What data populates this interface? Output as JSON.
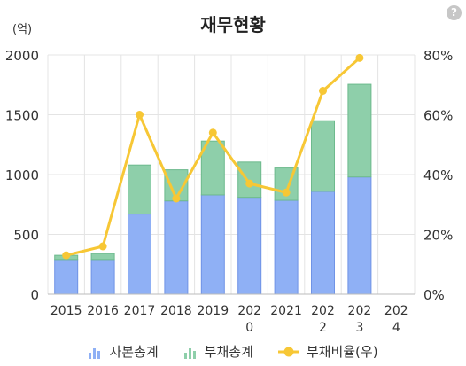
{
  "header": {
    "title": "재무현황",
    "unit_label": "(억)",
    "help_icon": "?"
  },
  "chart_data": {
    "type": "bar",
    "stacked": true,
    "categories": [
      "2015",
      "2016",
      "2017",
      "2018",
      "2019",
      "2020",
      "2021",
      "2022",
      "2023",
      "2024"
    ],
    "category_lines": [
      [
        "2015"
      ],
      [
        "2016"
      ],
      [
        "2017"
      ],
      [
        "2018"
      ],
      [
        "2019"
      ],
      [
        "202",
        "0"
      ],
      [
        "2021"
      ],
      [
        "202",
        "2"
      ],
      [
        "202",
        "3"
      ],
      [
        "202",
        "4"
      ]
    ],
    "series": [
      {
        "name": "자본총계",
        "type": "bar",
        "axis": "left",
        "color": "#8fb0f5",
        "values": [
          290,
          290,
          670,
          780,
          830,
          810,
          785,
          860,
          980,
          null
        ]
      },
      {
        "name": "부채총계",
        "type": "bar",
        "axis": "left",
        "color": "#8ecfaa",
        "values": [
          35,
          50,
          410,
          260,
          450,
          295,
          270,
          590,
          775,
          null
        ]
      },
      {
        "name": "부채비율(우)",
        "type": "line",
        "axis": "right",
        "color": "#f7c735",
        "values": [
          13,
          16,
          60,
          32,
          54,
          37,
          34,
          68,
          79,
          null
        ]
      }
    ],
    "y_left": {
      "min": 0,
      "max": 2000,
      "ticks": [
        0,
        500,
        1000,
        1500,
        2000
      ],
      "labels": [
        "0",
        "500",
        "1000",
        "1500",
        "2000"
      ]
    },
    "y_right": {
      "min": 0,
      "max": 80,
      "ticks": [
        0,
        20,
        40,
        60,
        80
      ],
      "labels": [
        "0%",
        "20%",
        "40%",
        "60%",
        "80%"
      ]
    },
    "grid": true,
    "legend_position": "bottom"
  }
}
